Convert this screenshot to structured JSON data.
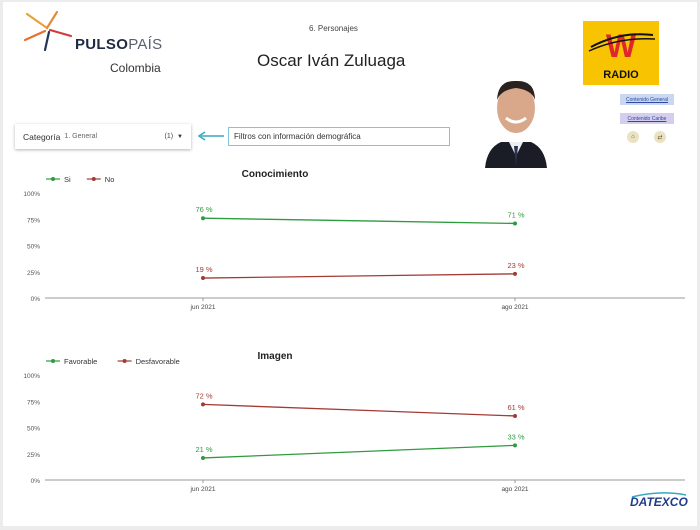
{
  "header": {
    "brand_bold": "PULSO",
    "brand_light": "PAÍS",
    "brand_country": "Colombia",
    "section": "6. Personajes",
    "person_name": "Oscar Iván Zuluaga",
    "radio_letter": "W",
    "radio_label": "RADIO",
    "footer_brand": "DATEXCO"
  },
  "filter": {
    "label": "Categoría",
    "value": "1. General",
    "count": "(1)",
    "note": "Filtros con información demográfica"
  },
  "side_links": {
    "general": "Contenido General",
    "caribbean": "Contenido Caribe"
  },
  "colors": {
    "positive": "#2e9b3e",
    "negative": "#a33a36",
    "accent_arrow": "#36a8c0",
    "radio_bg": "#f8c300",
    "radio_red": "#e0262d"
  },
  "icons": {
    "arrow": "left-arrow-icon",
    "dropdown": "caret-down-icon",
    "photo": "person-photo",
    "round1": "home-icon",
    "round2": "share-icon"
  },
  "chart_data": [
    {
      "type": "line",
      "title": "Conocimiento",
      "categories": [
        "jun 2021",
        "ago 2021"
      ],
      "series": [
        {
          "name": "Si",
          "values": [
            76,
            71
          ],
          "labels": [
            "76 %",
            "71 %"
          ],
          "color": "#2e9b3e"
        },
        {
          "name": "No",
          "values": [
            19,
            23
          ],
          "labels": [
            "19 %",
            "23 %"
          ],
          "color": "#a33a36"
        }
      ],
      "yticks": [
        "100%",
        "75%",
        "50%",
        "25%",
        "0%"
      ],
      "ylim": [
        0,
        100
      ],
      "legend": "top-left",
      "grid": false
    },
    {
      "type": "line",
      "title": "Imagen",
      "categories": [
        "jun 2021",
        "ago 2021"
      ],
      "series": [
        {
          "name": "Favorable",
          "values": [
            21,
            33
          ],
          "labels": [
            "21 %",
            "33 %"
          ],
          "color": "#2e9b3e"
        },
        {
          "name": "Desfavorable",
          "values": [
            72,
            61
          ],
          "labels": [
            "72 %",
            "61 %"
          ],
          "color": "#a33a36"
        }
      ],
      "yticks": [
        "100%",
        "75%",
        "50%",
        "25%",
        "0%"
      ],
      "ylim": [
        0,
        100
      ],
      "legend": "top-left",
      "grid": false
    }
  ]
}
